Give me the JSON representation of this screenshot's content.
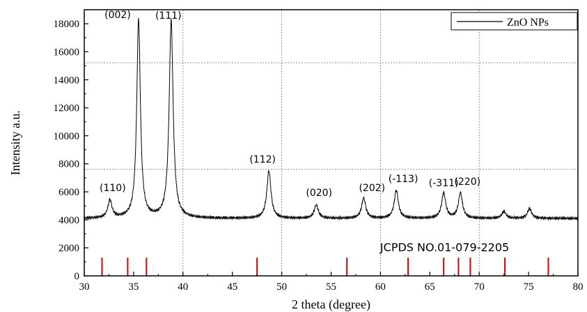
{
  "chart_data": {
    "type": "line",
    "xlabel": "2 theta (degree)",
    "ylabel": "Intensity a.u.",
    "xlim": [
      30,
      80
    ],
    "ylim": [
      0,
      19000
    ],
    "x_ticks": [
      30,
      35,
      40,
      45,
      50,
      55,
      60,
      65,
      70,
      75,
      80
    ],
    "y_ticks": [
      0,
      2000,
      4000,
      6000,
      8000,
      10000,
      12000,
      14000,
      16000,
      18000
    ],
    "vertical_gridlines": [
      40,
      50,
      60,
      70
    ],
    "horizontal_gridlines": [
      7600,
      15200
    ],
    "legend": {
      "position": "top-right",
      "entries": [
        "ZnO NPs"
      ]
    },
    "series": [
      {
        "name": "ZnO NPs",
        "color": "#000000",
        "baseline": 4100,
        "peaks": [
          {
            "x": 32.6,
            "y": 5350,
            "label": "(110)"
          },
          {
            "x": 35.5,
            "y": 18300,
            "label": "(002)"
          },
          {
            "x": 38.8,
            "y": 18200,
            "label": "(111)"
          },
          {
            "x": 48.7,
            "y": 7500,
            "label": "(112)"
          },
          {
            "x": 53.5,
            "y": 5050,
            "label": "(020)"
          },
          {
            "x": 58.3,
            "y": 5550,
            "label": "(202)"
          },
          {
            "x": 61.6,
            "y": 6100,
            "label": "(-113)"
          },
          {
            "x": 66.4,
            "y": 5900,
            "label": "(-311)"
          },
          {
            "x": 68.1,
            "y": 5900,
            "label": "(220)"
          },
          {
            "x": 72.5,
            "y": 4600,
            "label": ""
          },
          {
            "x": 75.1,
            "y": 4800,
            "label": ""
          }
        ]
      }
    ],
    "reference": {
      "label": "JCPDS NO.01-079-2205",
      "color": "#dd0000",
      "positions": [
        31.8,
        34.4,
        36.3,
        47.5,
        56.6,
        62.8,
        66.4,
        67.9,
        69.1,
        72.6,
        77.0
      ],
      "height": 1300
    }
  }
}
